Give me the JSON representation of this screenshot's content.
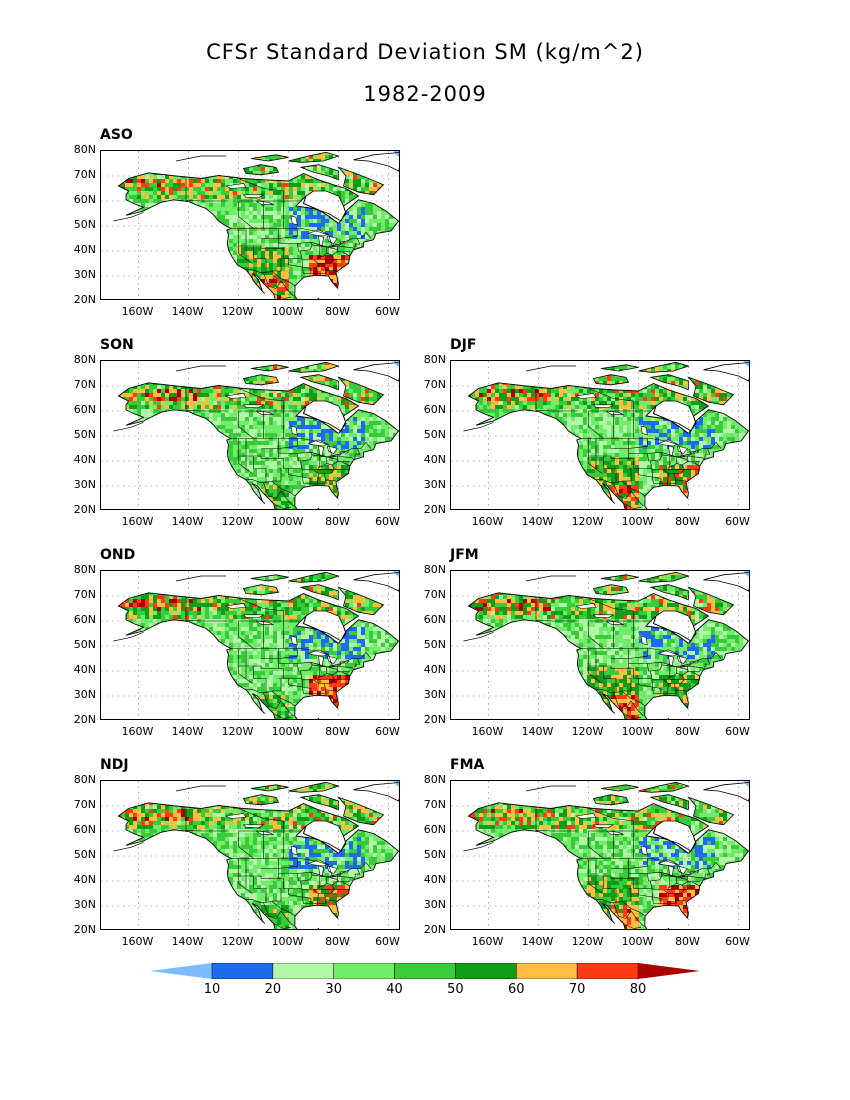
{
  "title": {
    "line1": "CFSr Standard Deviation SM (kg/m^2)",
    "line2": "1982-2009"
  },
  "axes": {
    "lat_labels": [
      "80N",
      "70N",
      "60N",
      "50N",
      "40N",
      "30N",
      "20N"
    ],
    "lon_labels": [
      "160W",
      "140W",
      "120W",
      "100W",
      "80W",
      "60W"
    ],
    "lat_range": [
      20,
      80
    ],
    "lon_range": [
      -175,
      -55
    ]
  },
  "panels": [
    {
      "label": "ASO",
      "row": 0,
      "col": 0
    },
    {
      "label": "SON",
      "row": 1,
      "col": 0
    },
    {
      "label": "DJF",
      "row": 1,
      "col": 1
    },
    {
      "label": "OND",
      "row": 2,
      "col": 0
    },
    {
      "label": "JFM",
      "row": 2,
      "col": 1
    },
    {
      "label": "NDJ",
      "row": 3,
      "col": 0
    },
    {
      "label": "FMA",
      "row": 3,
      "col": 1
    }
  ],
  "colorbar": {
    "levels": [
      "10",
      "20",
      "30",
      "40",
      "50",
      "60",
      "70",
      "80"
    ],
    "colors": [
      "#7bbcff",
      "#1f6bef",
      "#b2f7a8",
      "#72ec6b",
      "#38cc3a",
      "#119c19",
      "#ffbe40",
      "#ff3a14",
      "#aa0000"
    ],
    "ocean_color": "#ffffff",
    "extends_both_ends": true
  }
}
